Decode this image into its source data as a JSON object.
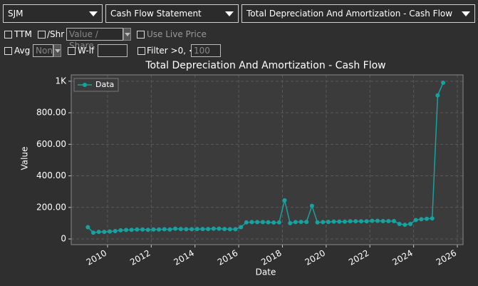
{
  "toolbar": {
    "symbol": "SJM",
    "statement": "Cash Flow Statement",
    "metric": "Total Depreciation And Amortization - Cash Flow"
  },
  "options": {
    "ttm": "TTM",
    "per_share": "/Shr",
    "per_share_mode": "Value / Share",
    "live_price": "Use Live Price",
    "avg": "Avg",
    "avg_mode": "Non",
    "weight": "W-lf",
    "filter": "Filter >0, <",
    "filter_value": 100
  },
  "chart_data": {
    "type": "line",
    "title": "Total Depreciation And Amortization - Cash Flow",
    "xlabel": "Date",
    "ylabel": "Value",
    "x": [
      2009.1,
      2009.35,
      2009.6,
      2009.85,
      2010.1,
      2010.35,
      2010.6,
      2010.85,
      2011.1,
      2011.35,
      2011.6,
      2011.85,
      2012.1,
      2012.35,
      2012.6,
      2012.85,
      2013.1,
      2013.35,
      2013.6,
      2013.85,
      2014.1,
      2014.35,
      2014.6,
      2014.85,
      2015.1,
      2015.35,
      2015.6,
      2015.85,
      2016.1,
      2016.35,
      2016.6,
      2016.85,
      2017.1,
      2017.35,
      2017.6,
      2017.85,
      2018.1,
      2018.35,
      2018.6,
      2018.85,
      2019.1,
      2019.35,
      2019.6,
      2019.85,
      2020.1,
      2020.35,
      2020.6,
      2020.85,
      2021.1,
      2021.35,
      2021.6,
      2021.85,
      2022.1,
      2022.35,
      2022.6,
      2022.85,
      2023.1,
      2023.35,
      2023.6,
      2023.85,
      2024.1,
      2024.35,
      2024.6,
      2024.85,
      2025.1,
      2025.35
    ],
    "series": [
      {
        "name": "Data",
        "color": "#17a2a2",
        "values": [
          75,
          40,
          45,
          45,
          47,
          50,
          55,
          57,
          58,
          60,
          60,
          58,
          60,
          60,
          62,
          60,
          65,
          63,
          62,
          62,
          63,
          63,
          63,
          65,
          65,
          63,
          62,
          62,
          75,
          105,
          107,
          107,
          107,
          106,
          104,
          105,
          245,
          100,
          107,
          108,
          108,
          210,
          105,
          107,
          108,
          110,
          110,
          110,
          112,
          112,
          112,
          112,
          115,
          115,
          113,
          113,
          113,
          95,
          90,
          95,
          120,
          125,
          128,
          130,
          910,
          990
        ]
      }
    ],
    "xlim": [
      2008.34,
      2026.26
    ],
    "xticks": [
      2010,
      2012,
      2014,
      2016,
      2018,
      2020,
      2022,
      2024,
      2026
    ],
    "ylim": [
      -36,
      1040
    ],
    "yticks": [
      0,
      {
        "value": 200,
        "label": "200.00"
      },
      {
        "value": 400,
        "label": "400.00"
      },
      {
        "value": 600,
        "label": "600.00"
      },
      {
        "value": 800,
        "label": "800.00"
      },
      {
        "value": 1000,
        "label": "1K"
      }
    ],
    "grid": true,
    "legend": "upper left"
  }
}
